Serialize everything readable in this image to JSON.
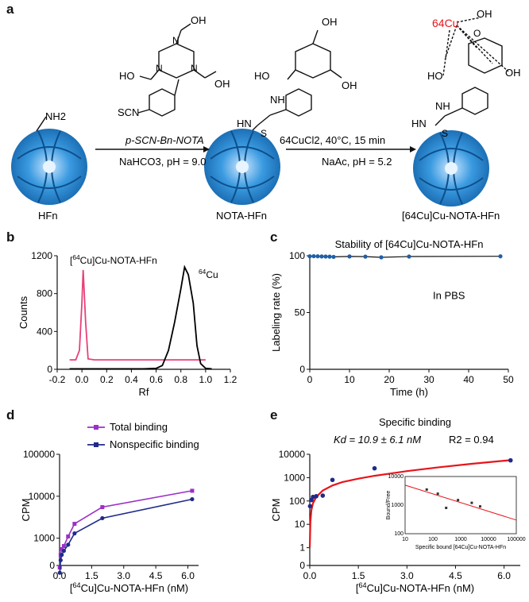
{
  "panels": {
    "a": "a",
    "b": "b",
    "c": "c",
    "d": "d",
    "e": "e"
  },
  "scheme": {
    "reagent1": "p-SCN-Bn-NOTA",
    "cond1": "NaHCO3, pH = 9.0",
    "reagent2": "64CuCl2, 40°C, 15 min",
    "cond2": "NaAc, pH = 5.2",
    "label_hfn": "HFn",
    "label_nota_hfn": "NOTA-HFn",
    "label_product": "[64Cu]Cu-NOTA-HFn",
    "group_nh2": "NH2",
    "group_scn": "SCN",
    "group_oh": "OH",
    "group_ho": "HO",
    "atom_n": "N",
    "atom_o": "O",
    "atom_s": "S",
    "group_nh": "NH",
    "group_hn": "HN",
    "metal": "64Cu",
    "accent_color": "#e8141b",
    "protein_color": "#2b8fd6"
  },
  "chart_data": [
    {
      "panel": "b",
      "type": "line",
      "title": "",
      "xlabel": "Rf",
      "ylabel": "Counts",
      "xlim": [
        -0.2,
        1.2
      ],
      "ylim": [
        0,
        1200
      ],
      "xticks": [
        "-0.2",
        "0.0",
        "0.2",
        "0.4",
        "0.6",
        "0.8",
        "1.0",
        "1.2"
      ],
      "yticks": [
        "0",
        "400",
        "800",
        "1200"
      ],
      "annotations": [
        "[64Cu]Cu-NOTA-HFn",
        "64Cu"
      ],
      "series": [
        {
          "name": "[64Cu]Cu-NOTA-HFn",
          "color": "#e8407a",
          "x": [
            -0.1,
            -0.05,
            -0.02,
            0.0,
            0.01,
            0.03,
            0.05,
            0.1,
            0.3,
            0.5,
            0.7,
            0.9,
            1.0
          ],
          "y": [
            100,
            100,
            200,
            700,
            1050,
            500,
            110,
            100,
            100,
            100,
            100,
            100,
            100
          ]
        },
        {
          "name": "64Cu",
          "color": "#000000",
          "x": [
            -0.1,
            0.0,
            0.2,
            0.5,
            0.6,
            0.65,
            0.7,
            0.75,
            0.8,
            0.83,
            0.86,
            0.9,
            0.93,
            0.96,
            1.0,
            1.05
          ],
          "y": [
            5,
            5,
            5,
            5,
            10,
            40,
            200,
            500,
            850,
            1080,
            1000,
            700,
            250,
            60,
            10,
            5
          ]
        }
      ]
    },
    {
      "panel": "c",
      "type": "line",
      "title": "Stability of [64Cu]Cu-NOTA-HFn",
      "xlabel": "Time (h)",
      "ylabel": "Labeling rate (%)",
      "xlim": [
        0,
        50
      ],
      "ylim": [
        0,
        100
      ],
      "xticks": [
        "0",
        "10",
        "20",
        "30",
        "40",
        "50"
      ],
      "yticks": [
        "0",
        "50",
        "100"
      ],
      "annotations": [
        "In PBS"
      ],
      "series": [
        {
          "name": "",
          "color": "#1f5fa8",
          "x": [
            0,
            1,
            2,
            3,
            4,
            5,
            6,
            10,
            14,
            18,
            25,
            48
          ],
          "y": [
            99.5,
            99.6,
            99.5,
            99.4,
            99.3,
            99.2,
            99.0,
            99.4,
            99.2,
            98.6,
            99.3,
            99.5
          ]
        }
      ]
    },
    {
      "panel": "d",
      "type": "line",
      "title": "",
      "xlabel": "[64Cu]Cu-NOTA-HFn (nM)",
      "ylabel": "CPM",
      "xlim": [
        0,
        6.5
      ],
      "ylim": [
        0,
        100000
      ],
      "scale": "log",
      "xticks": [
        "0.0",
        "1.5",
        "3.0",
        "4.5",
        "6.0"
      ],
      "yticks": [
        "0",
        "1000",
        "10000",
        "100000"
      ],
      "series": [
        {
          "name": "Total binding",
          "color": "#9b30c8",
          "x": [
            0.01,
            0.05,
            0.1,
            0.2,
            0.4,
            0.7,
            2.0,
            6.2
          ],
          "y": [
            200,
            400,
            550,
            650,
            1100,
            2200,
            5500,
            13500
          ]
        },
        {
          "name": "Nonspecific binding",
          "color": "#1f2a8a",
          "x": [
            0.01,
            0.05,
            0.1,
            0.2,
            0.4,
            0.7,
            2.0,
            6.2
          ],
          "y": [
            150,
            300,
            400,
            500,
            700,
            1300,
            3000,
            8500
          ]
        }
      ]
    },
    {
      "panel": "e",
      "type": "scatter",
      "title": "Specific binding",
      "xlabel": "[64Cu]Cu-NOTA-HFn (nM)",
      "ylabel": "CPM",
      "xlim": [
        0,
        6.5
      ],
      "ylim": [
        1,
        10000
      ],
      "scale": "log",
      "xticks": [
        "0.0",
        "1.5",
        "3.0",
        "4.5",
        "6.0"
      ],
      "yticks": [
        "1",
        "10",
        "100",
        "1000",
        "10000"
      ],
      "annotations": [
        "Kd = 10.9 ± 6.1 nM",
        "R2 = 0.94"
      ],
      "series": [
        {
          "name": "data",
          "color": "#1f2a8a",
          "x": [
            0.01,
            0.05,
            0.1,
            0.2,
            0.4,
            0.7,
            2.0,
            6.2
          ],
          "y": [
            60,
            110,
            150,
            160,
            170,
            800,
            2500,
            5500
          ]
        },
        {
          "name": "fit",
          "color": "#e8141b",
          "x": [
            0.0,
            0.02,
            0.05,
            0.1,
            0.2,
            0.4,
            0.7,
            1.0,
            1.5,
            2.0,
            3.0,
            4.0,
            5.0,
            6.2
          ],
          "y": [
            1,
            13,
            40,
            80,
            150,
            280,
            460,
            640,
            900,
            1200,
            1900,
            2800,
            3900,
            5600
          ]
        }
      ],
      "inset": {
        "type": "scatter",
        "xlabel": "Specific bound [64Cu]Cu-NOTA-HFn",
        "ylabel": "Bound/Free",
        "scale": "log-log",
        "xlim": [
          10,
          100000
        ],
        "ylim": [
          100,
          10000
        ],
        "xticks": [
          "10",
          "100",
          "1000",
          "10000",
          "100000"
        ],
        "yticks": [
          "100",
          "1000",
          "10000"
        ],
        "points": {
          "x": [
            60,
            150,
            300,
            800,
            2500,
            5000
          ],
          "y": [
            3500,
            2500,
            800,
            1500,
            1200,
            900
          ]
        },
        "fit": {
          "x": [
            10,
            100000
          ],
          "y": [
            5000,
            300
          ]
        }
      }
    }
  ]
}
